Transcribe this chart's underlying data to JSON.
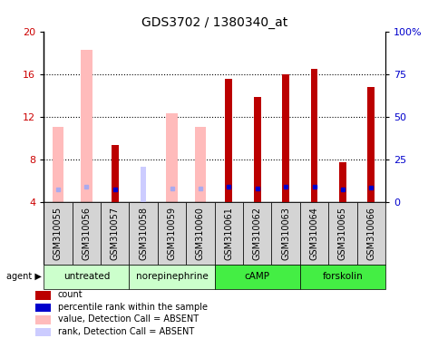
{
  "title": "GDS3702 / 1380340_at",
  "samples": [
    "GSM310055",
    "GSM310056",
    "GSM310057",
    "GSM310058",
    "GSM310059",
    "GSM310060",
    "GSM310061",
    "GSM310062",
    "GSM310063",
    "GSM310064",
    "GSM310065",
    "GSM310066"
  ],
  "absent_value": [
    11.0,
    18.3,
    null,
    null,
    12.3,
    11.0,
    null,
    null,
    null,
    null,
    null,
    null
  ],
  "absent_rank": [
    null,
    null,
    null,
    7.3,
    null,
    null,
    null,
    null,
    null,
    null,
    null,
    null
  ],
  "count_value": [
    null,
    null,
    9.3,
    null,
    null,
    null,
    15.5,
    13.8,
    16.0,
    16.5,
    7.7,
    14.8
  ],
  "rank_value": [
    7.5,
    9.0,
    7.5,
    null,
    8.0,
    8.0,
    9.0,
    8.0,
    9.0,
    9.0,
    7.5,
    8.5
  ],
  "rank_absent": [
    true,
    true,
    false,
    true,
    true,
    true,
    false,
    false,
    false,
    false,
    false,
    false
  ],
  "groups": [
    {
      "label": "untreated",
      "start": 0,
      "end": 2,
      "color": "#ccffcc"
    },
    {
      "label": "norepinephrine",
      "start": 3,
      "end": 5,
      "color": "#ccffcc"
    },
    {
      "label": "cAMP",
      "start": 6,
      "end": 8,
      "color": "#44ee44"
    },
    {
      "label": "forskolin",
      "start": 9,
      "end": 11,
      "color": "#44ee44"
    }
  ],
  "ylim_left": [
    4,
    20
  ],
  "ylim_right": [
    0,
    100
  ],
  "yticks_left": [
    4,
    8,
    12,
    16,
    20
  ],
  "yticks_right": [
    0,
    25,
    50,
    75,
    100
  ],
  "absent_color": "#ffbbbb",
  "absent_rank_color": "#ccccff",
  "count_color": "#bb0000",
  "rank_color_present": "#0000cc",
  "rank_color_absent": "#aaaaee",
  "title_fontsize": 10,
  "tick_fontsize": 7,
  "legend_fontsize": 7,
  "axis_color_left": "#cc0000",
  "axis_color_right": "#0000cc"
}
